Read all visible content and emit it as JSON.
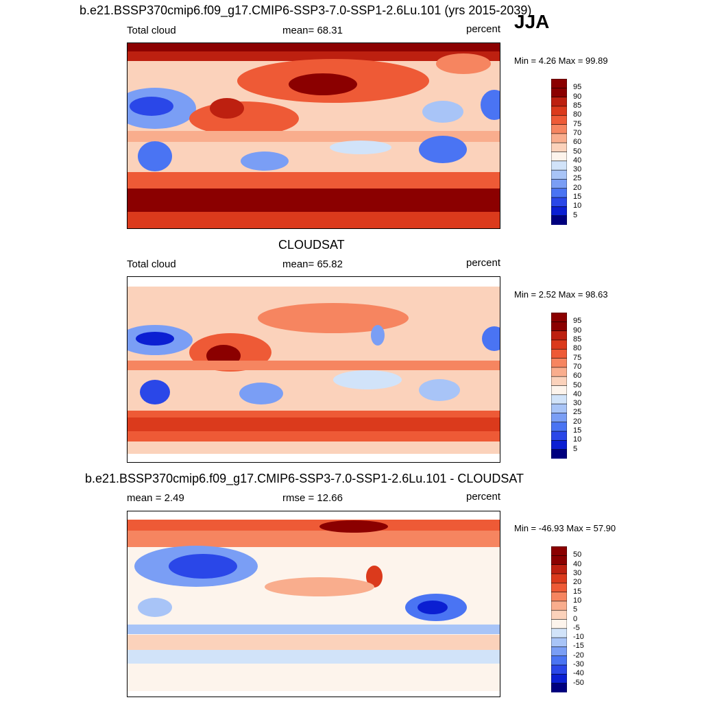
{
  "season": "JJA",
  "colors": {
    "abs": [
      "#00007f",
      "#0b1fd2",
      "#2a47e8",
      "#4a74f3",
      "#7a9ef5",
      "#a8c4f7",
      "#d1e3f9",
      "#fdf4ec",
      "#fbd2bb",
      "#f9ad8d",
      "#f68560",
      "#ee5a36",
      "#db3a1c",
      "#bd2010",
      "#8b0000"
    ],
    "diff": [
      "#00007f",
      "#0b1fd2",
      "#2a47e8",
      "#4a74f3",
      "#7a9ef5",
      "#a8c4f7",
      "#d1e3f9",
      "#fdf4ec",
      "#fbd2bb",
      "#f9ad8d",
      "#f68560",
      "#ee5a36",
      "#db3a1c",
      "#bd2010",
      "#8b0000"
    ]
  },
  "chart_data": [
    {
      "type": "heatmap",
      "title": "b.e21.BSSP370cmip6.f09_g17.CMIP6-SSP3-7.0-SSP1-2.6Lu.101 (yrs 2015-2039)",
      "left_label": "Total cloud",
      "center_label": "mean=  68.31",
      "right_label": "percent",
      "range_label": "Min =   4.26 Max =  99.89",
      "min": 4.26,
      "max": 99.89,
      "mean": 68.31,
      "levels": [
        "95",
        "90",
        "85",
        "80",
        "75",
        "70",
        "60",
        "50",
        "40",
        "30",
        "25",
        "20",
        "15",
        "10",
        "5"
      ]
    },
    {
      "type": "heatmap",
      "title": "CLOUDSAT",
      "left_label": "Total cloud",
      "center_label": "mean=  65.82",
      "right_label": "percent",
      "range_label": "Min =   2.52 Max =  98.63",
      "min": 2.52,
      "max": 98.63,
      "mean": 65.82,
      "levels": [
        "95",
        "90",
        "85",
        "80",
        "75",
        "70",
        "60",
        "50",
        "40",
        "30",
        "25",
        "20",
        "15",
        "10",
        "5"
      ]
    },
    {
      "type": "heatmap",
      "title": "b.e21.BSSP370cmip6.f09_g17.CMIP6-SSP3-7.0-SSP1-2.6Lu.101 - CLOUDSAT",
      "left_label": "mean =   2.49",
      "center_label": "rmse =  12.66",
      "right_label": "percent",
      "range_label": "Min = -46.93 Max =  57.90",
      "min": -46.93,
      "max": 57.9,
      "mean": 2.49,
      "rmse": 12.66,
      "levels": [
        "50",
        "40",
        "30",
        "20",
        "15",
        "10",
        "5",
        "0",
        "-5",
        "-10",
        "-15",
        "-20",
        "-30",
        "-40",
        "-50"
      ]
    }
  ]
}
